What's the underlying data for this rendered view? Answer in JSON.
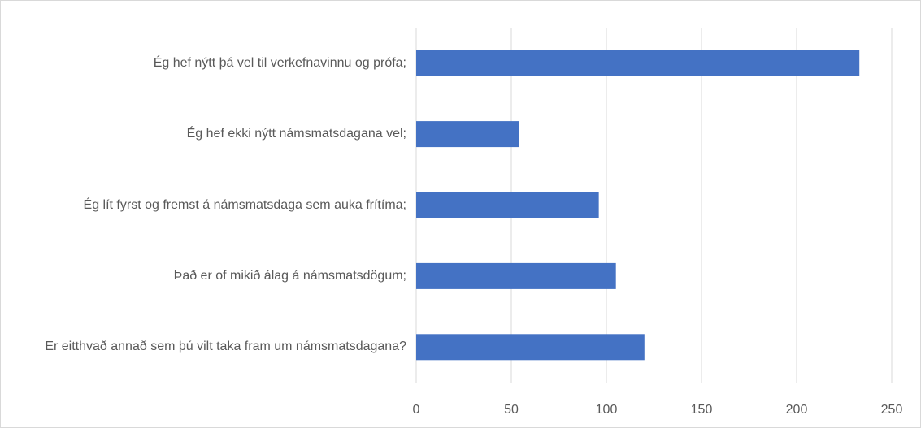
{
  "chart_data": {
    "type": "bar",
    "orientation": "horizontal",
    "categories": [
      "Ég hef nýtt þá vel til verkefnavinnu og prófa;",
      "Ég hef ekki nýtt námsmatsdagana vel;",
      "Ég lít fyrst og fremst á námsmatsdaga sem auka frítíma;",
      "Það er of mikið álag á námsmatsdögum;",
      "Er eitthvað annað sem þú vilt taka fram um námsmatsdagana?"
    ],
    "values": [
      233,
      54,
      96,
      105,
      120
    ],
    "color": "#4472c4",
    "xlim": [
      0,
      250
    ],
    "xticks": [
      0,
      50,
      100,
      150,
      200,
      250
    ],
    "grid": true
  }
}
